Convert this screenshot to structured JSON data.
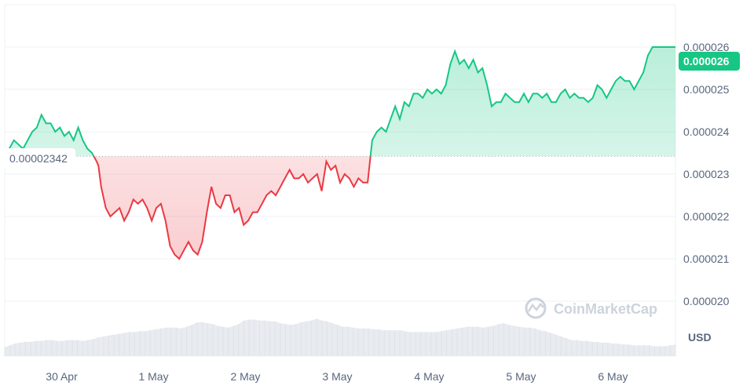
{
  "chart_data": {
    "type": "line",
    "currency": "USD",
    "baseline": 2.342e-05,
    "baseline_label": "0.00002342",
    "last_price_label": "0.000026",
    "watermark": "CoinMarketCap",
    "colors": {
      "up": "#16c784",
      "down": "#ea3943",
      "up_fill": "#16c784",
      "down_fill": "#ea3943",
      "grid": "#eff2f5",
      "axis_text": "#58667e",
      "volume": "#e6e9ed"
    },
    "ylim": [
      1.97e-05,
      2.68e-05
    ],
    "y_ticks": [
      {
        "value": 2e-05,
        "label": "0.000020"
      },
      {
        "value": 2.1e-05,
        "label": "0.000021"
      },
      {
        "value": 2.2e-05,
        "label": "0.000022"
      },
      {
        "value": 2.3e-05,
        "label": "0.000023"
      },
      {
        "value": 2.4e-05,
        "label": "0.000024"
      },
      {
        "value": 2.5e-05,
        "label": "0.000025"
      },
      {
        "value": 2.6e-05,
        "label": "0.000026"
      }
    ],
    "xlim": [
      0.0,
      7.3
    ],
    "x_ticks": [
      {
        "value": 0.62,
        "label": "30 Apr"
      },
      {
        "value": 1.62,
        "label": "1 May"
      },
      {
        "value": 2.62,
        "label": "2 May"
      },
      {
        "value": 3.62,
        "label": "3 May"
      },
      {
        "value": 4.62,
        "label": "4 May"
      },
      {
        "value": 5.62,
        "label": "5 May"
      },
      {
        "value": 6.62,
        "label": "6 May"
      }
    ],
    "x_unit": "days since start of chart",
    "price": {
      "x": [
        0.0,
        0.05,
        0.1,
        0.15,
        0.2,
        0.25,
        0.3,
        0.35,
        0.4,
        0.45,
        0.5,
        0.55,
        0.6,
        0.65,
        0.7,
        0.75,
        0.8,
        0.85,
        0.9,
        0.95,
        1.0,
        1.02,
        1.05,
        1.1,
        1.15,
        1.2,
        1.25,
        1.3,
        1.35,
        1.4,
        1.45,
        1.5,
        1.55,
        1.6,
        1.65,
        1.7,
        1.75,
        1.8,
        1.85,
        1.9,
        1.95,
        2.0,
        2.05,
        2.1,
        2.15,
        2.2,
        2.25,
        2.3,
        2.35,
        2.4,
        2.45,
        2.5,
        2.55,
        2.6,
        2.65,
        2.7,
        2.75,
        2.8,
        2.85,
        2.9,
        2.95,
        3.0,
        3.05,
        3.1,
        3.15,
        3.2,
        3.25,
        3.3,
        3.35,
        3.4,
        3.45,
        3.5,
        3.55,
        3.6,
        3.65,
        3.7,
        3.75,
        3.8,
        3.85,
        3.9,
        3.95,
        4.0,
        4.05,
        4.1,
        4.15,
        4.2,
        4.25,
        4.3,
        4.35,
        4.4,
        4.45,
        4.5,
        4.55,
        4.6,
        4.65,
        4.7,
        4.75,
        4.8,
        4.85,
        4.9,
        4.95,
        5.0,
        5.05,
        5.1,
        5.15,
        5.2,
        5.25,
        5.3,
        5.35,
        5.4,
        5.45,
        5.5,
        5.55,
        5.6,
        5.65,
        5.7,
        5.75,
        5.8,
        5.85,
        5.9,
        5.95,
        6.0,
        6.05,
        6.1,
        6.15,
        6.2,
        6.25,
        6.3,
        6.35,
        6.4,
        6.45,
        6.5,
        6.55,
        6.6,
        6.65,
        6.7,
        6.75,
        6.8,
        6.85,
        6.9,
        6.95,
        7.0,
        7.05,
        7.1,
        7.15,
        7.2,
        7.25,
        7.3
      ],
      "y": [
        2.342e-05,
        2.36e-05,
        2.38e-05,
        2.37e-05,
        2.36e-05,
        2.38e-05,
        2.4e-05,
        2.41e-05,
        2.44e-05,
        2.42e-05,
        2.42e-05,
        2.4e-05,
        2.41e-05,
        2.39e-05,
        2.4e-05,
        2.38e-05,
        2.41e-05,
        2.38e-05,
        2.36e-05,
        2.35e-05,
        2.33e-05,
        2.32e-05,
        2.27e-05,
        2.22e-05,
        2.2e-05,
        2.21e-05,
        2.22e-05,
        2.19e-05,
        2.21e-05,
        2.24e-05,
        2.23e-05,
        2.24e-05,
        2.22e-05,
        2.19e-05,
        2.22e-05,
        2.23e-05,
        2.19e-05,
        2.13e-05,
        2.11e-05,
        2.1e-05,
        2.12e-05,
        2.14e-05,
        2.12e-05,
        2.11e-05,
        2.14e-05,
        2.21e-05,
        2.27e-05,
        2.23e-05,
        2.22e-05,
        2.25e-05,
        2.25e-05,
        2.21e-05,
        2.22e-05,
        2.18e-05,
        2.19e-05,
        2.21e-05,
        2.21e-05,
        2.23e-05,
        2.25e-05,
        2.26e-05,
        2.25e-05,
        2.27e-05,
        2.29e-05,
        2.31e-05,
        2.29e-05,
        2.29e-05,
        2.3e-05,
        2.28e-05,
        2.29e-05,
        2.3e-05,
        2.26e-05,
        2.33e-05,
        2.31e-05,
        2.32e-05,
        2.28e-05,
        2.3e-05,
        2.29e-05,
        2.27e-05,
        2.29e-05,
        2.28e-05,
        2.28e-05,
        2.38e-05,
        2.4e-05,
        2.41e-05,
        2.4e-05,
        2.43e-05,
        2.46e-05,
        2.43e-05,
        2.47e-05,
        2.46e-05,
        2.49e-05,
        2.49e-05,
        2.48e-05,
        2.5e-05,
        2.49e-05,
        2.5e-05,
        2.49e-05,
        2.51e-05,
        2.56e-05,
        2.59e-05,
        2.56e-05,
        2.57e-05,
        2.55e-05,
        2.57e-05,
        2.54e-05,
        2.55e-05,
        2.51e-05,
        2.46e-05,
        2.47e-05,
        2.47e-05,
        2.49e-05,
        2.48e-05,
        2.47e-05,
        2.47e-05,
        2.49e-05,
        2.47e-05,
        2.49e-05,
        2.49e-05,
        2.48e-05,
        2.49e-05,
        2.47e-05,
        2.47e-05,
        2.49e-05,
        2.5e-05,
        2.48e-05,
        2.49e-05,
        2.48e-05,
        2.48e-05,
        2.47e-05,
        2.48e-05,
        2.51e-05,
        2.5e-05,
        2.48e-05,
        2.5e-05,
        2.52e-05,
        2.53e-05,
        2.52e-05,
        2.52e-05,
        2.5e-05,
        2.52e-05,
        2.54e-05,
        2.58e-05,
        2.6e-05,
        2.6e-05,
        2.6e-05,
        2.6e-05,
        2.6e-05,
        2.6e-05
      ]
    },
    "volume": {
      "values": [
        0.1,
        0.12,
        0.14,
        0.15,
        0.16,
        0.16,
        0.17,
        0.17,
        0.18,
        0.18,
        0.17,
        0.17,
        0.18,
        0.18,
        0.18,
        0.17,
        0.18,
        0.19,
        0.21,
        0.22,
        0.23,
        0.24,
        0.25,
        0.26,
        0.27,
        0.27,
        0.28,
        0.28,
        0.29,
        0.3,
        0.31,
        0.32,
        0.32,
        0.32,
        0.31,
        0.33,
        0.35,
        0.38,
        0.38,
        0.37,
        0.36,
        0.34,
        0.33,
        0.32,
        0.34,
        0.36,
        0.4,
        0.41,
        0.41,
        0.4,
        0.4,
        0.39,
        0.39,
        0.37,
        0.36,
        0.35,
        0.36,
        0.38,
        0.39,
        0.4,
        0.42,
        0.4,
        0.39,
        0.37,
        0.35,
        0.33,
        0.33,
        0.32,
        0.31,
        0.31,
        0.31,
        0.3,
        0.3,
        0.29,
        0.29,
        0.29,
        0.29,
        0.28,
        0.27,
        0.27,
        0.27,
        0.27,
        0.27,
        0.27,
        0.28,
        0.29,
        0.3,
        0.31,
        0.32,
        0.33,
        0.33,
        0.33,
        0.32,
        0.33,
        0.34,
        0.36,
        0.37,
        0.35,
        0.34,
        0.33,
        0.32,
        0.32,
        0.31,
        0.29,
        0.28,
        0.26,
        0.24,
        0.22,
        0.2,
        0.18,
        0.18,
        0.17,
        0.17,
        0.16,
        0.16,
        0.15,
        0.15,
        0.14,
        0.14,
        0.13,
        0.13,
        0.12,
        0.12,
        0.12,
        0.12,
        0.11,
        0.11,
        0.11,
        0.12,
        0.13
      ]
    }
  }
}
